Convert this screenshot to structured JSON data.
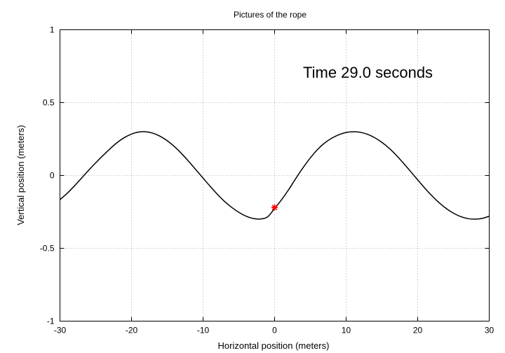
{
  "chart_data": {
    "type": "line",
    "title": "Pictures of the rope",
    "xlabel": "Horizontal position (meters)",
    "ylabel": "Vertical position (meters)",
    "xlim": [
      -30,
      30
    ],
    "ylim": [
      -1,
      1
    ],
    "grid": true,
    "xticks": [
      -30,
      -20,
      -10,
      0,
      10,
      20,
      30
    ],
    "xtick_labels": [
      "-30",
      "-20",
      "-10",
      "0",
      "10",
      "20",
      "30"
    ],
    "yticks": [
      -1,
      -0.5,
      0,
      0.5,
      1
    ],
    "ytick_labels": [
      "-1",
      "-0.5",
      "0",
      "0.5",
      "1"
    ],
    "annotation": "Time 29.0 seconds",
    "series": [
      {
        "style": "solid-black",
        "x": [
          -30,
          -29,
          -28,
          -27,
          -26,
          -25,
          -24,
          -23,
          -22,
          -21,
          -20,
          -19,
          -18,
          -17,
          -16,
          -15,
          -14,
          -13,
          -12,
          -11,
          -10,
          -9,
          -8,
          -7,
          -6,
          -5,
          -4,
          -3,
          -2,
          -1,
          0,
          1,
          2,
          3,
          4,
          5,
          6,
          7,
          8,
          9,
          10,
          11,
          12,
          13,
          14,
          15,
          16,
          17,
          18,
          19,
          20,
          21,
          22,
          23,
          24,
          25,
          26,
          27,
          28,
          29,
          30
        ],
        "y": [
          -0.166,
          -0.123,
          -0.073,
          -0.019,
          0.035,
          0.087,
          0.136,
          0.183,
          0.226,
          0.26,
          0.284,
          0.298,
          0.3,
          0.29,
          0.269,
          0.238,
          0.198,
          0.15,
          0.096,
          0.039,
          -0.018,
          -0.075,
          -0.129,
          -0.178,
          -0.219,
          -0.253,
          -0.279,
          -0.295,
          -0.299,
          -0.285,
          -0.227,
          -0.165,
          -0.095,
          -0.018,
          0.055,
          0.121,
          0.178,
          0.223,
          0.256,
          0.28,
          0.295,
          0.3,
          0.296,
          0.282,
          0.259,
          0.227,
          0.187,
          0.139,
          0.085,
          0.028,
          -0.03,
          -0.087,
          -0.14,
          -0.187,
          -0.227,
          -0.259,
          -0.282,
          -0.296,
          -0.3,
          -0.295,
          -0.28
        ]
      },
      {
        "style": "red-star-marker",
        "x": [
          0
        ],
        "y": [
          -0.22
        ]
      }
    ]
  }
}
